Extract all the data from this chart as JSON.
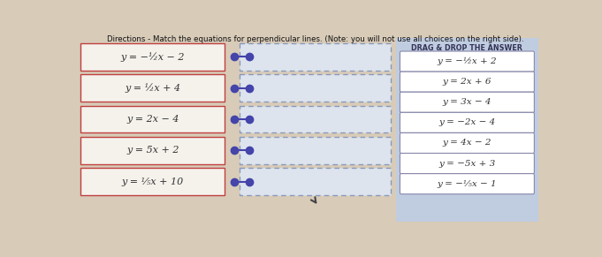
{
  "title": "Directions - Match the equations for perpendicular lines. (Note: you will not use all choices on the right side).",
  "left_equations": [
    "y = −½x − 2",
    "y = ½x + 4",
    "y = 2x − 4",
    "y = 5x + 2",
    "y = ⅕x + 10"
  ],
  "right_answers": [
    "y = −½x + 2",
    "y = 2x + 6",
    "y = 3x − 4",
    "y = −2x − 4",
    "y = 4x − 2",
    "y = −5x + 3",
    "y = −⅕x − 1"
  ],
  "drag_drop_label": "DRAG & DROP THE ANSWER",
  "bg_color": "#d8cbb8",
  "left_box_color": "#f5f2ec",
  "left_box_edge": "#c04040",
  "right_panel_color": "#c0cce0",
  "right_box_color": "#ffffff",
  "right_box_edge": "#8888aa",
  "drop_area_color": "#dde4ee",
  "drop_area_edge": "#8899bb",
  "dot_color": "#4444aa",
  "line_color": "#4444aa",
  "title_color": "#111111"
}
